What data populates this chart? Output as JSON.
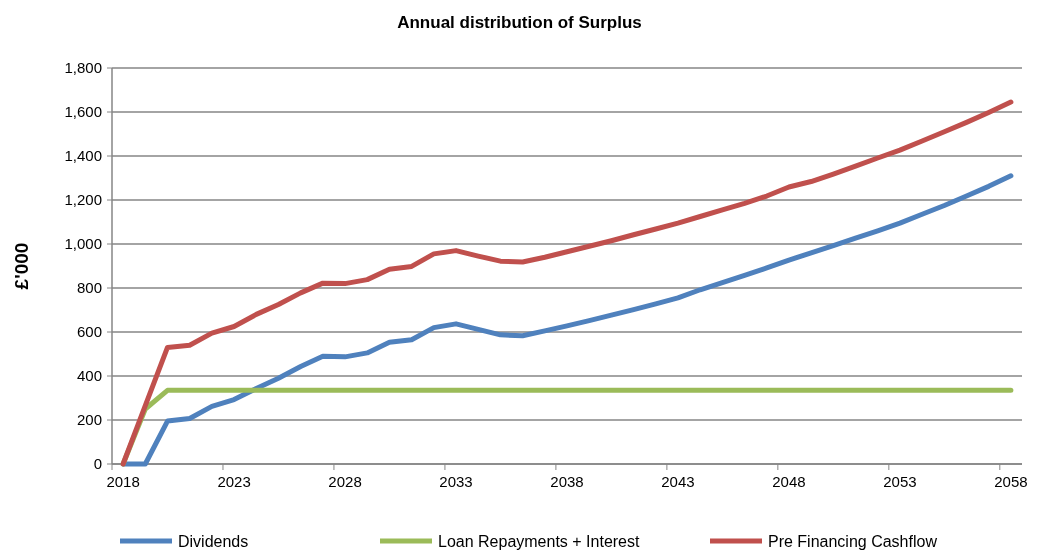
{
  "chart_data": {
    "type": "line",
    "title": "Annual distribution of Surplus",
    "ylabel": "£'000",
    "categories": [
      "2018",
      null,
      null,
      null,
      null,
      "2023",
      null,
      null,
      null,
      null,
      "2028",
      null,
      null,
      null,
      null,
      "2033",
      null,
      null,
      null,
      null,
      "2038",
      null,
      null,
      null,
      null,
      "2043",
      null,
      null,
      null,
      null,
      "2048",
      null,
      null,
      null,
      null,
      "2053",
      null,
      null,
      null,
      null,
      "2058"
    ],
    "series": [
      {
        "name": "Dividends",
        "color": "#4f81bd",
        "values": [
          0,
          0,
          195,
          207,
          262,
          293,
          343,
          390,
          443,
          490,
          487,
          505,
          553,
          565,
          620,
          637,
          612,
          587,
          583,
          605,
          628,
          652,
          677,
          702,
          728,
          755,
          792,
          824,
          857,
          891,
          927,
          960,
          993,
          1027,
          1060,
          1095,
          1135,
          1175,
          1218,
          1262,
          1310
        ]
      },
      {
        "name": "Loan Repayments + Interest",
        "color": "#9bbb59",
        "values": [
          0,
          250,
          335,
          335,
          335,
          335,
          335,
          335,
          335,
          335,
          335,
          335,
          335,
          335,
          335,
          335,
          335,
          335,
          335,
          335,
          335,
          335,
          335,
          335,
          335,
          335,
          335,
          335,
          335,
          335,
          335,
          335,
          335,
          335,
          335,
          335,
          335,
          335,
          335,
          335,
          335
        ]
      },
      {
        "name": "Pre Financing Cashflow",
        "color": "#c0504d",
        "values": [
          0,
          265,
          530,
          540,
          595,
          625,
          680,
          725,
          778,
          822,
          820,
          838,
          885,
          898,
          955,
          970,
          945,
          922,
          918,
          940,
          965,
          990,
          1015,
          1042,
          1068,
          1095,
          1125,
          1155,
          1185,
          1218,
          1259,
          1284,
          1318,
          1354,
          1391,
          1427,
          1468,
          1510,
          1553,
          1598,
          1645
        ]
      }
    ],
    "ylim": [
      0,
      1800
    ],
    "yticks": [
      {
        "value": 0,
        "label": "0"
      },
      {
        "value": 200,
        "label": "200"
      },
      {
        "value": 400,
        "label": "400"
      },
      {
        "value": 600,
        "label": "600"
      },
      {
        "value": 800,
        "label": "800"
      },
      {
        "value": 1000,
        "label": "1,000"
      },
      {
        "value": 1200,
        "label": "1,200"
      },
      {
        "value": 1400,
        "label": "1,400"
      },
      {
        "value": 1600,
        "label": "1,600"
      },
      {
        "value": 1800,
        "label": "1,800"
      }
    ],
    "grid": "y",
    "legend": "bottom",
    "marker": "none",
    "line_style": "solid"
  }
}
